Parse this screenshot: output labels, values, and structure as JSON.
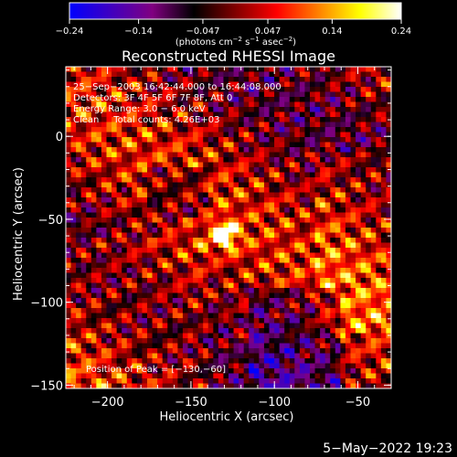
{
  "chart_data": {
    "type": "heatmap",
    "title": "Reconstructed RHESSI Image",
    "xlabel": "Heliocentric X (arcsec)",
    "ylabel": "Heliocentric Y (arcsec)",
    "xlim": [
      -225,
      -30
    ],
    "ylim": [
      -152,
      42
    ],
    "x_ticks": [
      {
        "value": -200,
        "label": "−200"
      },
      {
        "value": -150,
        "label": "−150"
      },
      {
        "value": -100,
        "label": "−100"
      },
      {
        "value": -50,
        "label": "−50"
      }
    ],
    "y_ticks": [
      {
        "value": 0,
        "label": "0"
      },
      {
        "value": -50,
        "label": "−50"
      },
      {
        "value": -100,
        "label": "−100"
      },
      {
        "value": -150,
        "label": "−150"
      }
    ],
    "info_lines": [
      "25−Sep−2003 16:42:44.000 to 16:44:08.000",
      "Detectors: 3F 4F 5F 6F 7F 8F, Att 0",
      "Energy Range: 3.0 − 6.0 keV",
      "Clean     Total counts: 4.26E+03"
    ],
    "peak_label": "Position of Peak = [−130,−60]",
    "peak": {
      "x": -130,
      "y": -60
    },
    "colorbar": {
      "range": [
        -0.24,
        0.24
      ],
      "ticks": [
        {
          "value": -0.24,
          "label": "−0.24"
        },
        {
          "value": -0.14,
          "label": "−0.14"
        },
        {
          "value": -0.047,
          "label": "−0.047"
        },
        {
          "value": 0.047,
          "label": "0.047"
        },
        {
          "value": 0.14,
          "label": "0.14"
        },
        {
          "value": 0.24,
          "label": "0.24"
        }
      ],
      "unit_main": "(photons cm",
      "unit_exp1": "−2",
      "unit_mid": " s",
      "unit_exp2": "−1",
      "unit_end": " asec",
      "unit_exp3": "−2",
      "unit_close": ")",
      "colors": [
        "#0000ff",
        "#4000c0",
        "#800080",
        "#000000",
        "#800000",
        "#ff0000",
        "#ff8000",
        "#ffff00",
        "#ffffff"
      ]
    }
  },
  "footer": {
    "timestamp": "5−May−2022 19:23"
  }
}
